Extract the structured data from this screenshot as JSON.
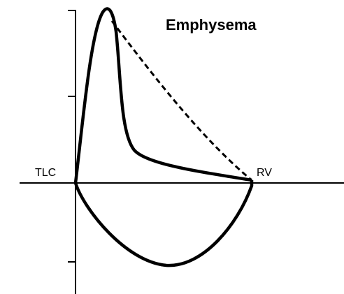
{
  "title": "Emphysema",
  "labels": {
    "left": "TLC",
    "right": "RV"
  }
}
